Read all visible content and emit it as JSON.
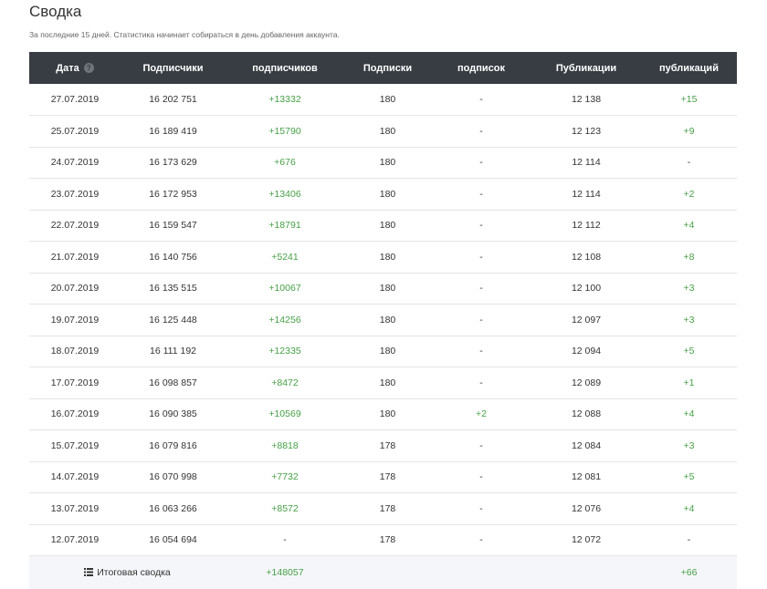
{
  "page": {
    "title": "Сводка",
    "subtitle": "За последние 15 дней. Статистика начинает собираться в день добавления аккаунта."
  },
  "table": {
    "headers": [
      "Дата",
      "Подписчики",
      "подписчиков",
      "Подписки",
      "подписок",
      "Публикации",
      "публикаций"
    ],
    "rows": [
      [
        "27.07.2019",
        "16 202 751",
        "+13332",
        "180",
        "-",
        "12 138",
        "+15"
      ],
      [
        "25.07.2019",
        "16 189 419",
        "+15790",
        "180",
        "-",
        "12 123",
        "+9"
      ],
      [
        "24.07.2019",
        "16 173 629",
        "+676",
        "180",
        "-",
        "12 114",
        "-"
      ],
      [
        "23.07.2019",
        "16 172 953",
        "+13406",
        "180",
        "-",
        "12 114",
        "+2"
      ],
      [
        "22.07.2019",
        "16 159 547",
        "+18791",
        "180",
        "-",
        "12 112",
        "+4"
      ],
      [
        "21.07.2019",
        "16 140 756",
        "+5241",
        "180",
        "-",
        "12 108",
        "+8"
      ],
      [
        "20.07.2019",
        "16 135 515",
        "+10067",
        "180",
        "-",
        "12 100",
        "+3"
      ],
      [
        "19.07.2019",
        "16 125 448",
        "+14256",
        "180",
        "-",
        "12 097",
        "+3"
      ],
      [
        "18.07.2019",
        "16 111 192",
        "+12335",
        "180",
        "-",
        "12 094",
        "+5"
      ],
      [
        "17.07.2019",
        "16 098 857",
        "+8472",
        "180",
        "-",
        "12 089",
        "+1"
      ],
      [
        "16.07.2019",
        "16 090 385",
        "+10569",
        "180",
        "+2",
        "12 088",
        "+4"
      ],
      [
        "15.07.2019",
        "16 079 816",
        "+8818",
        "178",
        "-",
        "12 084",
        "+3"
      ],
      [
        "14.07.2019",
        "16 070 998",
        "+7732",
        "178",
        "-",
        "12 081",
        "+5"
      ],
      [
        "13.07.2019",
        "16 063 266",
        "+8572",
        "178",
        "-",
        "12 076",
        "+4"
      ],
      [
        "12.07.2019",
        "16 054 694",
        "-",
        "178",
        "-",
        "12 072",
        "-"
      ]
    ],
    "summary": {
      "label": "Итоговая сводка",
      "followers_change": "+148057",
      "posts_change": "+66"
    }
  },
  "colors": {
    "header_bg": "#383d43",
    "positive": "#46a046",
    "summary_bg": "#f4f6f9"
  },
  "icons": {
    "date_help": "question-circle-icon",
    "summary": "list-icon"
  }
}
